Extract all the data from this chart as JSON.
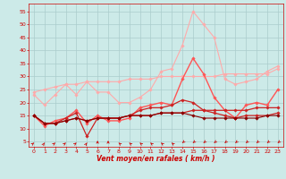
{
  "xlabel": "Vent moyen/en rafales ( km/h )",
  "xlim": [
    -0.5,
    23.5
  ],
  "ylim": [
    3,
    58
  ],
  "yticks": [
    5,
    10,
    15,
    20,
    25,
    30,
    35,
    40,
    45,
    50,
    55
  ],
  "xticks": [
    0,
    1,
    2,
    3,
    4,
    5,
    6,
    7,
    8,
    9,
    10,
    11,
    12,
    13,
    14,
    15,
    16,
    17,
    18,
    19,
    20,
    21,
    22,
    23
  ],
  "bg_color": "#cceae8",
  "grid_color": "#aacccc",
  "series": [
    {
      "color": "#ffaaaa",
      "linewidth": 0.8,
      "marker": "D",
      "markersize": 1.8,
      "y": [
        23,
        19,
        23,
        27,
        23,
        28,
        24,
        24,
        20,
        20,
        22,
        25,
        32,
        33,
        42,
        55,
        50,
        45,
        29,
        27,
        28,
        29,
        32,
        34
      ]
    },
    {
      "color": "#ffaaaa",
      "linewidth": 0.8,
      "marker": "D",
      "markersize": 1.8,
      "y": [
        24,
        25,
        26,
        27,
        27,
        28,
        28,
        28,
        28,
        29,
        29,
        29,
        30,
        30,
        30,
        30,
        30,
        30,
        31,
        31,
        31,
        31,
        31,
        33
      ]
    },
    {
      "color": "#ff5555",
      "linewidth": 1.0,
      "marker": "D",
      "markersize": 1.8,
      "y": [
        15,
        11,
        13,
        14,
        17,
        12,
        15,
        13,
        13,
        14,
        18,
        19,
        20,
        19,
        29,
        37,
        31,
        22,
        17,
        14,
        19,
        20,
        19,
        25
      ]
    },
    {
      "color": "#cc2222",
      "linewidth": 0.9,
      "marker": "D",
      "markersize": 1.8,
      "y": [
        15,
        12,
        12,
        14,
        16,
        7,
        14,
        14,
        14,
        15,
        17,
        18,
        18,
        19,
        21,
        20,
        17,
        16,
        15,
        14,
        15,
        15,
        15,
        16
      ]
    },
    {
      "color": "#cc2222",
      "linewidth": 0.9,
      "marker": "D",
      "markersize": 1.8,
      "y": [
        15,
        12,
        12,
        13,
        14,
        13,
        14,
        14,
        14,
        15,
        15,
        15,
        16,
        16,
        16,
        17,
        17,
        17,
        17,
        17,
        17,
        18,
        18,
        18
      ]
    },
    {
      "color": "#880000",
      "linewidth": 0.8,
      "marker": "D",
      "markersize": 1.8,
      "y": [
        15,
        12,
        12,
        13,
        14,
        13,
        14,
        14,
        14,
        15,
        15,
        15,
        16,
        16,
        16,
        15,
        14,
        14,
        14,
        14,
        14,
        14,
        15,
        15
      ]
    }
  ],
  "wind_arrows": {
    "x": [
      0,
      1,
      2,
      3,
      4,
      5,
      6,
      7,
      8,
      9,
      10,
      11,
      12,
      13,
      14,
      15,
      16,
      17,
      18,
      19,
      20,
      21,
      22,
      23
    ],
    "angles_deg": [
      45,
      30,
      45,
      45,
      45,
      30,
      0,
      0,
      315,
      315,
      315,
      315,
      315,
      315,
      225,
      225,
      225,
      225,
      225,
      225,
      225,
      225,
      225,
      225
    ]
  }
}
